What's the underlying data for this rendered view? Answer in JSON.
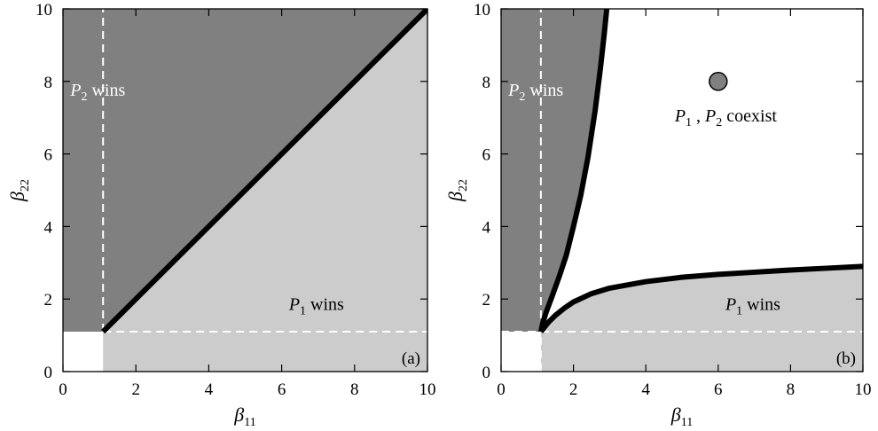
{
  "chart_data": [
    {
      "type": "area",
      "panel_tag": "(a)",
      "xlabel": {
        "symbol": "β",
        "subscript": "11"
      },
      "ylabel": {
        "symbol": "β",
        "subscript": "22"
      },
      "xlim": [
        0,
        10
      ],
      "ylim": [
        0,
        10
      ],
      "xticks": [
        "0",
        "2",
        "4",
        "6",
        "8",
        "10"
      ],
      "yticks": [
        "0",
        "2",
        "4",
        "6",
        "8",
        "10"
      ],
      "threshold": 1.1,
      "regions": [
        {
          "label": {
            "var": "P",
            "sub": "2",
            "text": "wins"
          },
          "color": "#808080",
          "label_at": [
            0.2,
            7.6
          ],
          "label_color": "#ffffff"
        },
        {
          "label": {
            "var": "P",
            "sub": "1",
            "text": "wins"
          },
          "color": "#cccccc",
          "label_at": [
            6.2,
            1.7
          ],
          "label_color": "#000000"
        }
      ],
      "boundary": {
        "x": [
          1.1,
          10
        ],
        "y": [
          1.1,
          10
        ]
      },
      "points": []
    },
    {
      "type": "area",
      "panel_tag": "(b)",
      "xlabel": {
        "symbol": "β",
        "subscript": "11"
      },
      "ylabel": {
        "symbol": "β",
        "subscript": "22"
      },
      "xlim": [
        0,
        10
      ],
      "ylim": [
        0,
        10
      ],
      "xticks": [
        "0",
        "2",
        "4",
        "6",
        "8",
        "10"
      ],
      "yticks": [
        "0",
        "2",
        "4",
        "6",
        "8",
        "10"
      ],
      "threshold": 1.1,
      "regions": [
        {
          "label": {
            "var": "P",
            "sub": "2",
            "text": "wins"
          },
          "color": "#808080",
          "label_at": [
            0.2,
            7.6
          ],
          "label_color": "#ffffff"
        },
        {
          "label": {
            "var": "P",
            "sub": "1",
            "text": "wins"
          },
          "color": "#cccccc",
          "label_at": [
            6.2,
            1.7
          ],
          "label_color": "#000000"
        },
        {
          "label": {
            "var": "P",
            "sub": "1",
            "text": ", ",
            "var2": "P",
            "sub2": "2",
            "text2": "coexist"
          },
          "color": "#ffffff",
          "label_at": [
            4.8,
            6.9
          ],
          "label_color": "#000000"
        }
      ],
      "upper_boundary": {
        "x": [
          1.1,
          1.15,
          1.25,
          1.4,
          1.6,
          1.8,
          2.0,
          2.2,
          2.4,
          2.6,
          2.75,
          2.85,
          2.92
        ],
        "y": [
          1.1,
          1.33,
          1.65,
          2.05,
          2.6,
          3.2,
          4.0,
          4.85,
          5.9,
          7.2,
          8.4,
          9.3,
          10.0
        ]
      },
      "lower_boundary": {
        "x": [
          1.1,
          1.3,
          1.5,
          1.75,
          2.0,
          2.5,
          3.0,
          4.0,
          5.0,
          6.0,
          7.0,
          8.0,
          9.0,
          10.0
        ],
        "y": [
          1.1,
          1.35,
          1.55,
          1.75,
          1.92,
          2.15,
          2.3,
          2.48,
          2.6,
          2.68,
          2.74,
          2.8,
          2.85,
          2.9
        ]
      },
      "points": [
        {
          "x": 6.0,
          "y": 8.0,
          "color": "#808080"
        }
      ]
    }
  ]
}
